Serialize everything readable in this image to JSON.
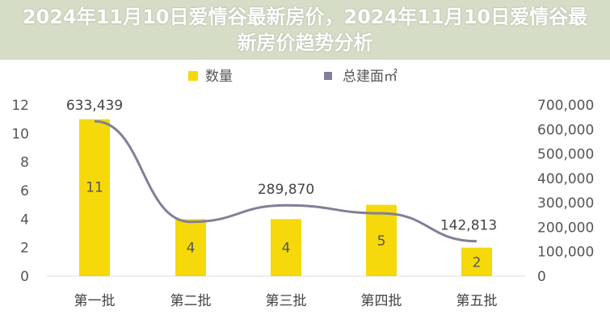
{
  "chart_data": {
    "type": "bar+line",
    "categories": [
      "第一批",
      "第二批",
      "第三批",
      "第四批",
      "第五批"
    ],
    "series": [
      {
        "name": "数量",
        "type": "bar",
        "axis": "left",
        "values": [
          11,
          4,
          4,
          5,
          2
        ],
        "data_labels": [
          "11",
          "4",
          "4",
          "5",
          "2"
        ],
        "color": "#f5d90a"
      },
      {
        "name": "总建面㎡",
        "type": "line",
        "axis": "right",
        "values": [
          633439,
          222000,
          289870,
          257000,
          142813
        ],
        "data_labels": [
          "633,439",
          "",
          "289,870",
          "",
          "142,813"
        ],
        "color": "#7f7f9a"
      }
    ],
    "left_axis": {
      "ylim": [
        0,
        12
      ],
      "ticks": [
        "0",
        "2",
        "4",
        "6",
        "8",
        "10",
        "12"
      ]
    },
    "right_axis": {
      "ylim": [
        0,
        700000
      ],
      "ticks": [
        "0",
        "100,000",
        "200,000",
        "300,000",
        "400,000",
        "500,000",
        "600,000",
        "700,000"
      ]
    },
    "legend": "top",
    "grid": false
  },
  "banner": {
    "title": "2024年11月10日爱情谷最新房价，2024年11月10日爱情谷最新房价趋势分析"
  }
}
